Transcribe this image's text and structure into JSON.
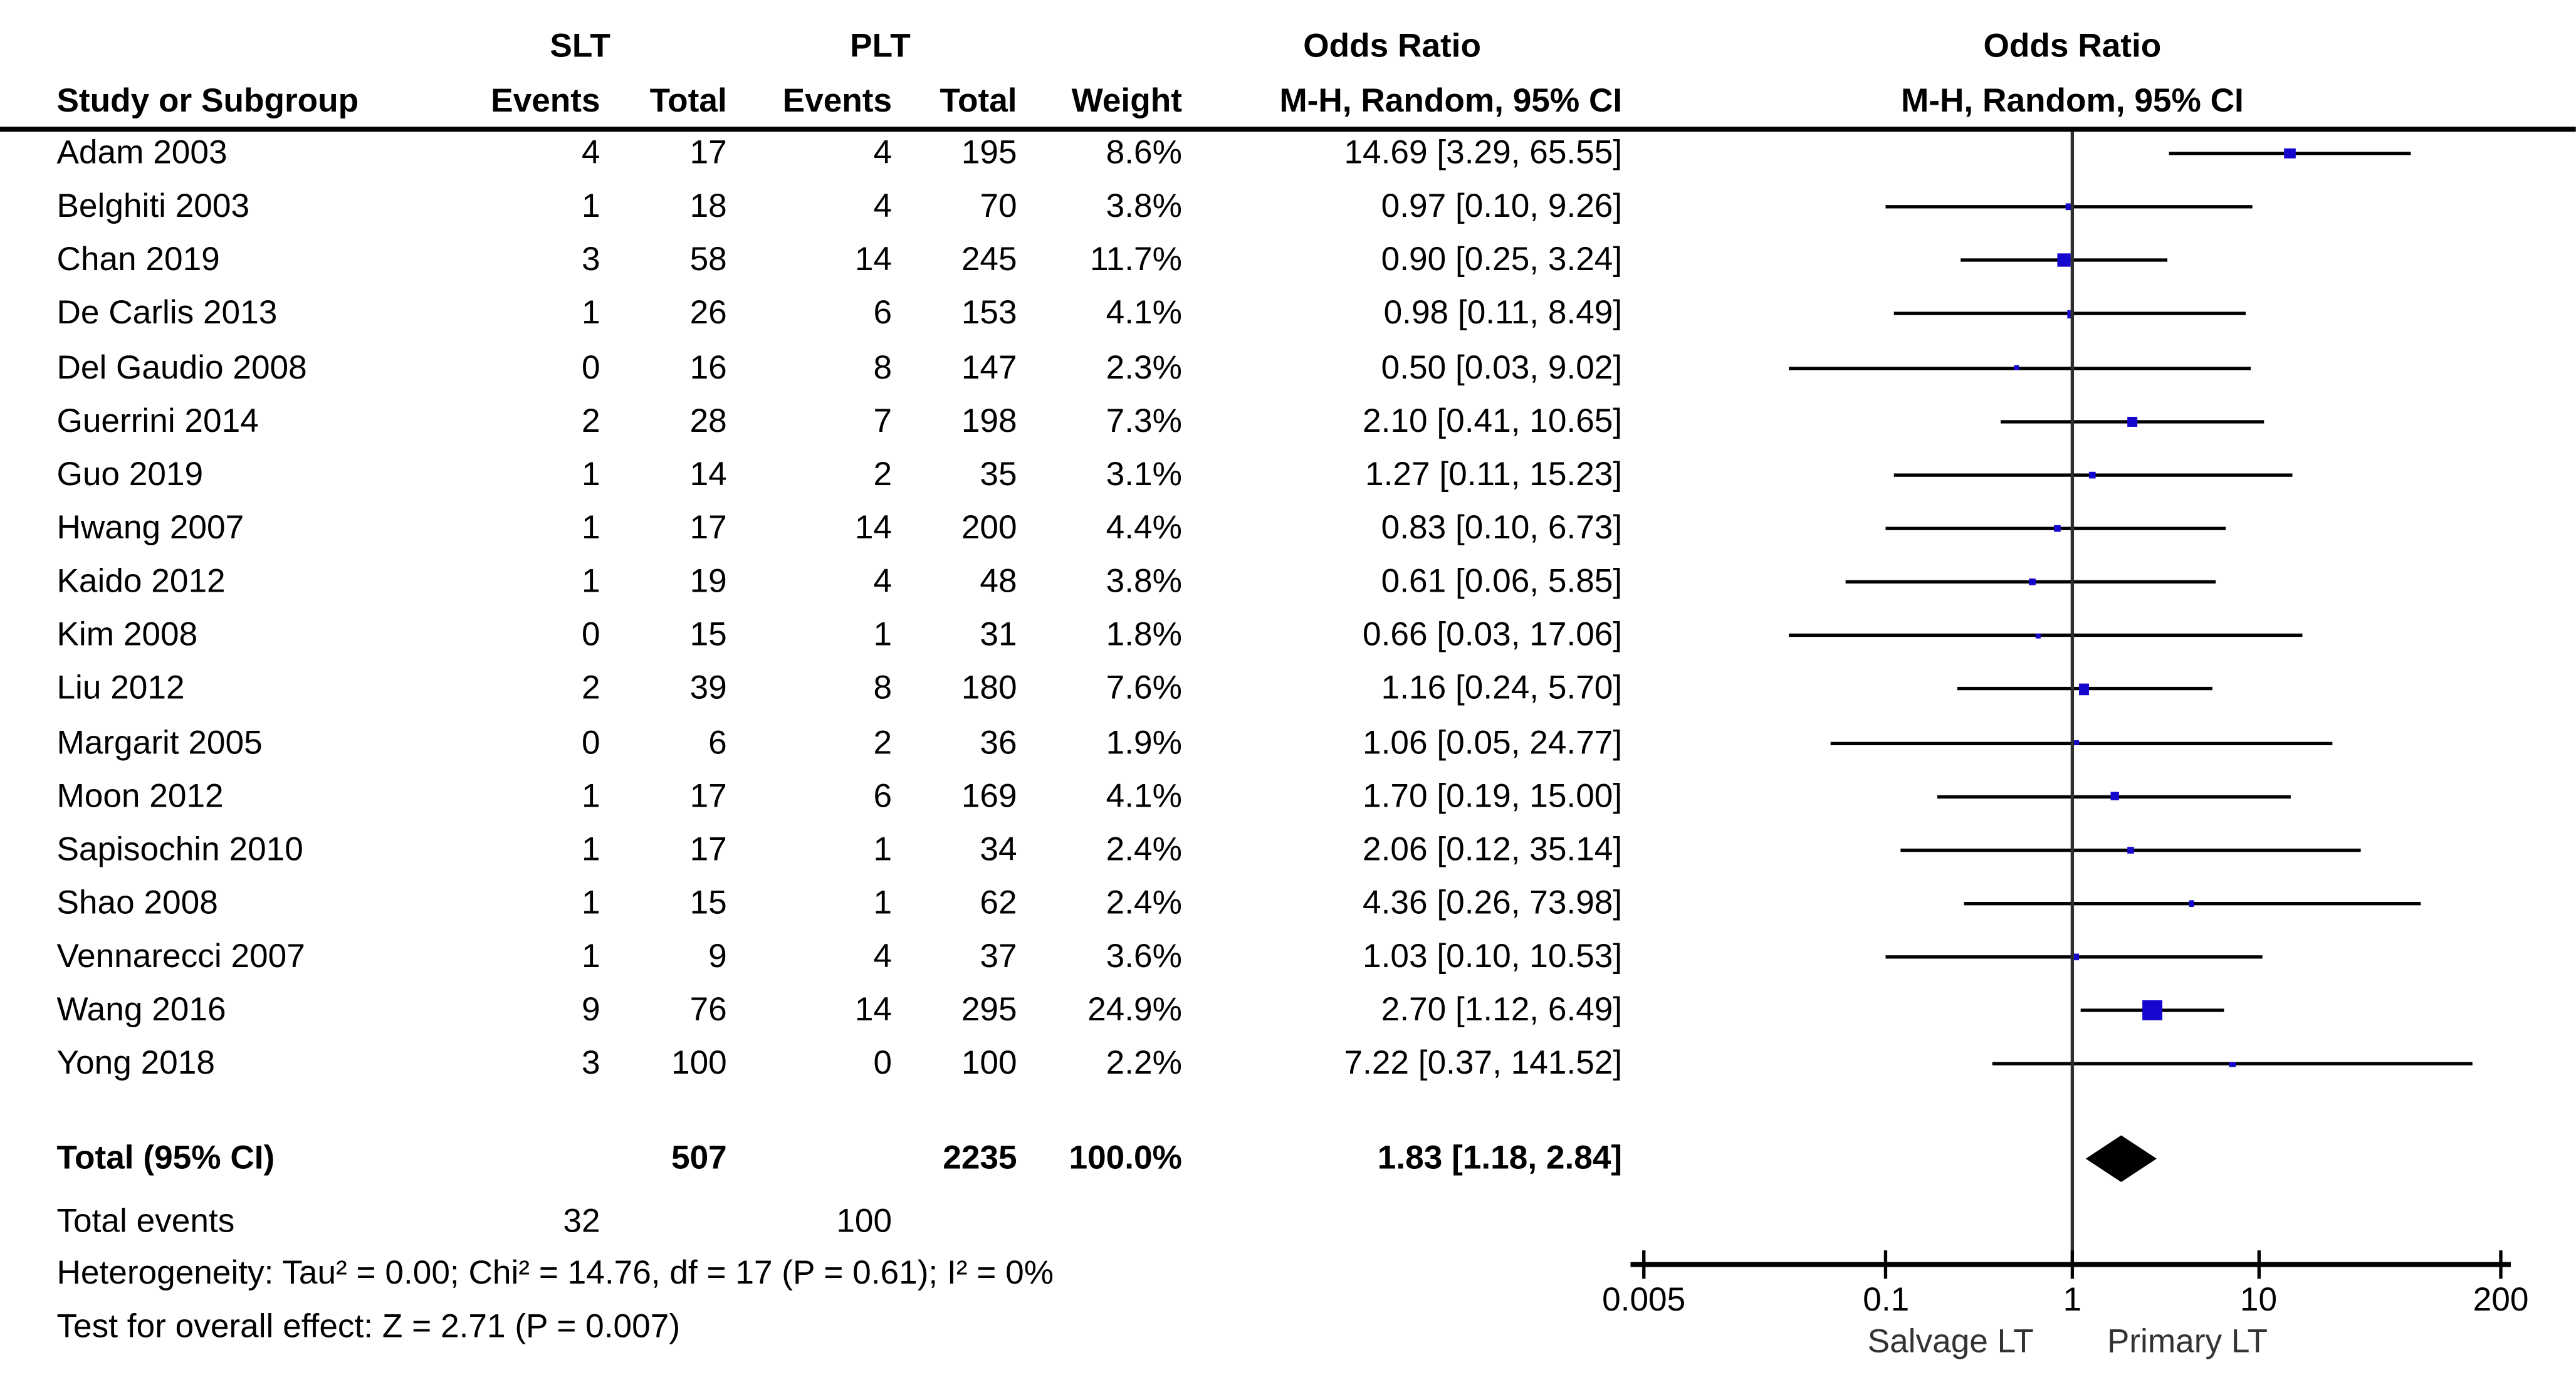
{
  "header": {
    "col_study": "Study or Subgroup",
    "group_slt": "SLT",
    "group_plt": "PLT",
    "group_or": "Odds Ratio",
    "col_events": "Events",
    "col_total": "Total",
    "col_weight": "Weight",
    "col_or_ci": "M-H, Random, 95% CI"
  },
  "plot_header": {
    "title": "Odds Ratio",
    "subtitle": "M-H, Random, 95% CI"
  },
  "total_row": {
    "label": "Total (95% CI)",
    "slt_total": "507",
    "plt_total": "2235",
    "weight": "100.0%",
    "or_ci_text": "1.83 [1.18, 2.84]"
  },
  "total_events_row": {
    "label": "Total events",
    "slt": "32",
    "plt": "100"
  },
  "footer": {
    "heterogeneity": "Heterogeneity: Tau² = 0.00; Chi² = 14.76, df = 17 (P = 0.61); I² = 0%",
    "overall_effect": "Test for overall effect: Z = 2.71 (P = 0.007)"
  },
  "chart_data": {
    "type": "forest",
    "effect_measure": "Odds Ratio, M-H, Random, 95% CI",
    "x_scale": "log10",
    "x_range": [
      0.005,
      200
    ],
    "x_ticks": [
      0.005,
      0.1,
      1,
      10,
      200
    ],
    "x_tick_labels": [
      "0.005",
      "0.1",
      "1",
      "10",
      "200"
    ],
    "axis_left_label": "Salvage LT",
    "axis_right_label": "Primary LT",
    "marker_color": "#1507ce",
    "diamond_color": "#000000",
    "studies": [
      {
        "name": "Adam 2003",
        "e1": "4",
        "t1": "17",
        "e2": "4",
        "t2": "195",
        "weight": "8.6%",
        "w": 8.6,
        "or_text": "14.69 [3.29, 65.55]",
        "or": 14.69,
        "lo": 3.29,
        "hi": 65.55
      },
      {
        "name": "Belghiti 2003",
        "e1": "1",
        "t1": "18",
        "e2": "4",
        "t2": "70",
        "weight": "3.8%",
        "w": 3.8,
        "or_text": "0.97 [0.10, 9.26]",
        "or": 0.97,
        "lo": 0.1,
        "hi": 9.26
      },
      {
        "name": "Chan 2019",
        "e1": "3",
        "t1": "58",
        "e2": "14",
        "t2": "245",
        "weight": "11.7%",
        "w": 11.7,
        "or_text": "0.90 [0.25, 3.24]",
        "or": 0.9,
        "lo": 0.25,
        "hi": 3.24
      },
      {
        "name": "De Carlis 2013",
        "e1": "1",
        "t1": "26",
        "e2": "6",
        "t2": "153",
        "weight": "4.1%",
        "w": 4.1,
        "or_text": "0.98 [0.11, 8.49]",
        "or": 0.98,
        "lo": 0.11,
        "hi": 8.49
      },
      {
        "name": "Del Gaudio 2008",
        "e1": "0",
        "t1": "16",
        "e2": "8",
        "t2": "147",
        "weight": "2.3%",
        "w": 2.3,
        "or_text": "0.50 [0.03, 9.02]",
        "or": 0.5,
        "lo": 0.03,
        "hi": 9.02
      },
      {
        "name": "Guerrini 2014",
        "e1": "2",
        "t1": "28",
        "e2": "7",
        "t2": "198",
        "weight": "7.3%",
        "w": 7.3,
        "or_text": "2.10 [0.41, 10.65]",
        "or": 2.1,
        "lo": 0.41,
        "hi": 10.65
      },
      {
        "name": "Guo 2019",
        "e1": "1",
        "t1": "14",
        "e2": "2",
        "t2": "35",
        "weight": "3.1%",
        "w": 3.1,
        "or_text": "1.27 [0.11, 15.23]",
        "or": 1.27,
        "lo": 0.11,
        "hi": 15.23
      },
      {
        "name": "Hwang 2007",
        "e1": "1",
        "t1": "17",
        "e2": "14",
        "t2": "200",
        "weight": "4.4%",
        "w": 4.4,
        "or_text": "0.83 [0.10, 6.73]",
        "or": 0.83,
        "lo": 0.1,
        "hi": 6.73
      },
      {
        "name": "Kaido 2012",
        "e1": "1",
        "t1": "19",
        "e2": "4",
        "t2": "48",
        "weight": "3.8%",
        "w": 3.8,
        "or_text": "0.61 [0.06, 5.85]",
        "or": 0.61,
        "lo": 0.06,
        "hi": 5.85
      },
      {
        "name": "Kim 2008",
        "e1": "0",
        "t1": "15",
        "e2": "1",
        "t2": "31",
        "weight": "1.8%",
        "w": 1.8,
        "or_text": "0.66 [0.03, 17.06]",
        "or": 0.66,
        "lo": 0.03,
        "hi": 17.06
      },
      {
        "name": "Liu 2012",
        "e1": "2",
        "t1": "39",
        "e2": "8",
        "t2": "180",
        "weight": "7.6%",
        "w": 7.6,
        "or_text": "1.16 [0.24, 5.70]",
        "or": 1.16,
        "lo": 0.24,
        "hi": 5.7
      },
      {
        "name": "Margarit 2005",
        "e1": "0",
        "t1": "6",
        "e2": "2",
        "t2": "36",
        "weight": "1.9%",
        "w": 1.9,
        "or_text": "1.06 [0.05, 24.77]",
        "or": 1.06,
        "lo": 0.05,
        "hi": 24.77
      },
      {
        "name": "Moon 2012",
        "e1": "1",
        "t1": "17",
        "e2": "6",
        "t2": "169",
        "weight": "4.1%",
        "w": 4.1,
        "or_text": "1.70 [0.19, 15.00]",
        "or": 1.7,
        "lo": 0.19,
        "hi": 15.0
      },
      {
        "name": "Sapisochin 2010",
        "e1": "1",
        "t1": "17",
        "e2": "1",
        "t2": "34",
        "weight": "2.4%",
        "w": 2.4,
        "or_text": "2.06 [0.12, 35.14]",
        "or": 2.06,
        "lo": 0.12,
        "hi": 35.14
      },
      {
        "name": "Shao 2008",
        "e1": "1",
        "t1": "15",
        "e2": "1",
        "t2": "62",
        "weight": "2.4%",
        "w": 2.4,
        "or_text": "4.36 [0.26, 73.98]",
        "or": 4.36,
        "lo": 0.26,
        "hi": 73.98
      },
      {
        "name": "Vennarecci 2007",
        "e1": "1",
        "t1": "9",
        "e2": "4",
        "t2": "37",
        "weight": "3.6%",
        "w": 3.6,
        "or_text": "1.03 [0.10, 10.53]",
        "or": 1.03,
        "lo": 0.1,
        "hi": 10.53
      },
      {
        "name": "Wang 2016",
        "e1": "9",
        "t1": "76",
        "e2": "14",
        "t2": "295",
        "weight": "24.9%",
        "w": 24.9,
        "or_text": "2.70 [1.12, 6.49]",
        "or": 2.7,
        "lo": 1.12,
        "hi": 6.49
      },
      {
        "name": "Yong 2018",
        "e1": "3",
        "t1": "100",
        "e2": "0",
        "t2": "100",
        "weight": "2.2%",
        "w": 2.2,
        "or_text": "7.22 [0.37, 141.52]",
        "or": 7.22,
        "lo": 0.37,
        "hi": 141.52
      }
    ],
    "total": {
      "or": 1.83,
      "lo": 1.18,
      "hi": 2.84
    }
  }
}
